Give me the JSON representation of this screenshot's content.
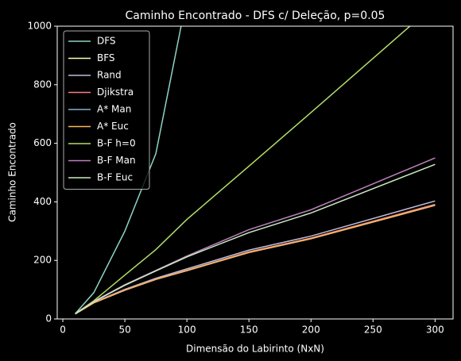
{
  "chart_data": {
    "type": "line",
    "title": "Caminho Encontrado - DFS c/ Deleção, p=0.05",
    "xlabel": "Dimensão do Labirinto (NxN)",
    "ylabel": "Caminho Encontrado",
    "x": [
      10,
      25,
      50,
      75,
      100,
      150,
      200,
      300
    ],
    "xlim": [
      -4.5,
      314.5
    ],
    "xticks": [
      0,
      50,
      100,
      150,
      200,
      250,
      300
    ],
    "ylim": [
      0,
      1000
    ],
    "yticks": [
      0,
      200,
      400,
      600,
      800,
      1000
    ],
    "legend": "upper left",
    "grid": false,
    "series": [
      {
        "name": "DFS",
        "color": "#8dd3c7",
        "values": [
          18,
          90,
          300,
          565,
          1100,
          null,
          null,
          null
        ]
      },
      {
        "name": "BFS",
        "color": "#feffb3",
        "values": [
          17,
          56,
          99,
          136,
          166,
          229,
          276,
          391
        ]
      },
      {
        "name": "Rand",
        "color": "#bfbbd9",
        "values": [
          18,
          57,
          101,
          139,
          171,
          235,
          283,
          403
        ]
      },
      {
        "name": "Djikstra",
        "color": "#fa8174",
        "values": [
          17,
          56,
          99,
          136,
          166,
          229,
          276,
          391
        ]
      },
      {
        "name": "A* Man",
        "color": "#81b1d2",
        "values": [
          17,
          55,
          98,
          135,
          165,
          227,
          274,
          388
        ]
      },
      {
        "name": "A* Euc",
        "color": "#fdb462",
        "values": [
          17,
          55,
          98,
          135,
          165,
          227,
          274,
          388
        ]
      },
      {
        "name": "B-F h=0",
        "color": "#b3de69",
        "values": [
          18,
          62,
          150,
          237,
          340,
          522,
          705,
          1075
        ]
      },
      {
        "name": "B-F Man",
        "color": "#bc82bd",
        "values": [
          18,
          60,
          117,
          166,
          215,
          305,
          373,
          550
        ]
      },
      {
        "name": "B-F Euc",
        "color": "#ccebc4",
        "values": [
          18,
          59,
          115,
          164,
          212,
          295,
          362,
          528
        ]
      }
    ]
  }
}
